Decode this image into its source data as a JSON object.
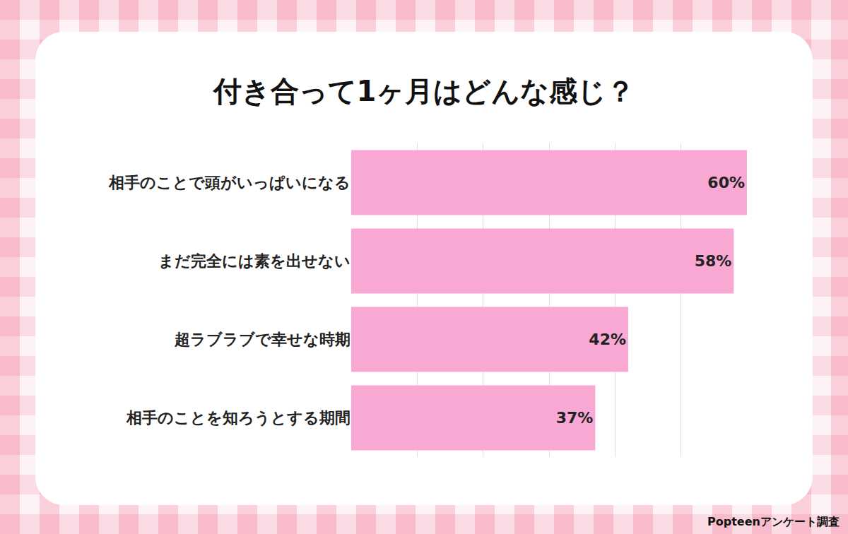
{
  "chart_data": {
    "type": "bar",
    "orientation": "horizontal",
    "title": "付き合って1ヶ月はどんな感じ？",
    "categories": [
      "相手のことで頭がいっぱいになる",
      "まだ完全には素を出せない",
      "超ラブラブで幸せな時期",
      "相手のことを知ろうとする期間"
    ],
    "values": [
      60,
      58,
      42,
      37
    ],
    "value_labels": [
      "60%",
      "58%",
      "42%",
      "37%"
    ],
    "data_labels": true,
    "color": "#f9a8d4",
    "xlim": [
      0,
      60
    ],
    "xticks": [
      0,
      10,
      20,
      30,
      40,
      50,
      60
    ],
    "grid": true,
    "tick_labels": "y",
    "annotations": [
      "Popteenアンケート調査"
    ]
  }
}
